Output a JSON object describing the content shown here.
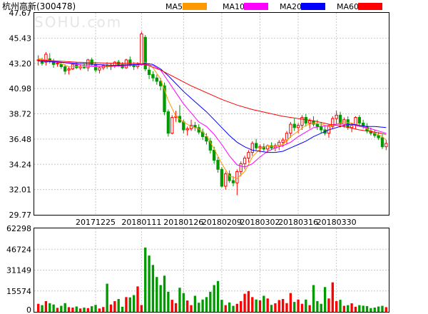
{
  "chart_data": {
    "type": "candlestick",
    "title": "杭州高新(300478)",
    "watermark": "SOHU.com",
    "legend": [
      {
        "name": "MA5",
        "color": "#ff9900"
      },
      {
        "name": "MA10",
        "color": "#ff00ff"
      },
      {
        "name": "MA20",
        "color": "#0000ff"
      },
      {
        "name": "MA60",
        "color": "#ff0000"
      }
    ],
    "colors": {
      "up": "#ff0000",
      "down": "#009900",
      "grid": "#c8c8c8"
    },
    "price_axis": {
      "ticks": [
        "47.67",
        "45.43",
        "43.20",
        "40.98",
        "38.72",
        "36.48",
        "34.24",
        "32.01",
        "29.77"
      ],
      "ylim": [
        29.77,
        47.67
      ]
    },
    "volume_axis": {
      "ticks": [
        "62298",
        "46724",
        "31149",
        "15574",
        "0"
      ],
      "ylim": [
        0,
        62298
      ]
    },
    "date_labels": [
      {
        "label": "20171225",
        "index": 15
      },
      {
        "label": "20180111",
        "index": 27
      },
      {
        "label": "20180126",
        "index": 38
      },
      {
        "label": "20180209",
        "index": 48
      },
      {
        "label": "20180302",
        "index": 58
      },
      {
        "label": "20180316",
        "index": 68
      },
      {
        "label": "20180330",
        "index": 78
      }
    ],
    "candles": [
      [
        43.5,
        43.9,
        43.0,
        43.5,
        6000
      ],
      [
        43.4,
        43.7,
        43.0,
        43.2,
        5000
      ],
      [
        43.3,
        44.2,
        43.0,
        44.0,
        8000
      ],
      [
        43.6,
        44.1,
        43.2,
        43.4,
        6500
      ],
      [
        43.4,
        43.6,
        42.8,
        43.1,
        5500
      ],
      [
        43.2,
        43.4,
        42.9,
        43.2,
        3000
      ],
      [
        43.1,
        43.3,
        42.7,
        42.9,
        4500
      ],
      [
        42.9,
        43.1,
        42.2,
        42.5,
        6500
      ],
      [
        42.6,
        42.9,
        42.2,
        42.7,
        3500
      ],
      [
        42.7,
        43.2,
        42.6,
        43.1,
        3200
      ],
      [
        43.1,
        43.3,
        42.7,
        42.8,
        4000
      ],
      [
        42.8,
        43.1,
        42.6,
        42.9,
        2500
      ],
      [
        42.9,
        43.2,
        42.7,
        42.8,
        3200
      ],
      [
        42.8,
        43.6,
        42.5,
        43.5,
        2800
      ],
      [
        43.5,
        43.7,
        43.0,
        43.1,
        4200
      ],
      [
        43.1,
        43.3,
        42.4,
        42.6,
        5200
      ],
      [
        42.6,
        42.9,
        42.3,
        42.8,
        2500
      ],
      [
        42.8,
        43.1,
        42.6,
        43.0,
        3600
      ],
      [
        43.0,
        43.3,
        42.7,
        42.9,
        21000
      ],
      [
        42.9,
        43.2,
        42.6,
        43.0,
        5500
      ],
      [
        43.0,
        43.4,
        42.8,
        43.3,
        8000
      ],
      [
        43.3,
        43.5,
        42.9,
        43.1,
        9600
      ],
      [
        43.1,
        43.3,
        42.7,
        42.8,
        3800
      ],
      [
        42.8,
        43.6,
        42.7,
        43.5,
        11000
      ],
      [
        43.5,
        43.8,
        42.9,
        43.0,
        10800
      ],
      [
        43.0,
        43.3,
        42.6,
        42.9,
        12500
      ],
      [
        42.9,
        43.3,
        42.7,
        43.1,
        19000
      ],
      [
        43.1,
        46.0,
        43.0,
        45.8,
        5100
      ],
      [
        45.5,
        45.7,
        42.5,
        42.7,
        48000
      ],
      [
        42.6,
        42.9,
        41.8,
        42.2,
        42000
      ],
      [
        42.2,
        42.5,
        41.6,
        41.9,
        35000
      ],
      [
        41.9,
        42.2,
        41.3,
        41.6,
        26000
      ],
      [
        41.6,
        41.9,
        40.8,
        41.2,
        20000
      ],
      [
        41.2,
        41.5,
        38.6,
        38.9,
        27000
      ],
      [
        38.9,
        39.1,
        36.7,
        37.0,
        15000
      ],
      [
        37.0,
        38.6,
        36.9,
        38.4,
        9000
      ],
      [
        38.4,
        39.0,
        38.0,
        38.5,
        6500
      ],
      [
        38.5,
        39.5,
        37.9,
        38.0,
        18000
      ],
      [
        38.0,
        38.2,
        37.0,
        37.3,
        14000
      ],
      [
        37.3,
        37.6,
        36.8,
        37.4,
        8500
      ],
      [
        37.4,
        38.2,
        37.2,
        37.7,
        5000
      ],
      [
        37.7,
        38.0,
        37.2,
        37.5,
        12000
      ],
      [
        37.5,
        37.8,
        36.9,
        37.1,
        6800
      ],
      [
        37.1,
        37.4,
        36.4,
        36.7,
        9200
      ],
      [
        36.7,
        37.0,
        36.0,
        36.3,
        11000
      ],
      [
        36.3,
        36.6,
        35.2,
        35.5,
        15000
      ],
      [
        35.5,
        35.8,
        34.3,
        34.6,
        20000
      ],
      [
        34.6,
        34.9,
        33.5,
        33.8,
        23000
      ],
      [
        33.8,
        34.0,
        32.2,
        32.3,
        9000
      ],
      [
        32.3,
        33.6,
        32.0,
        33.4,
        5000
      ],
      [
        33.4,
        33.7,
        32.6,
        32.8,
        7000
      ],
      [
        32.8,
        33.2,
        32.3,
        32.6,
        4500
      ],
      [
        32.6,
        33.8,
        31.5,
        33.6,
        6000
      ],
      [
        33.6,
        34.5,
        33.2,
        34.3,
        8000
      ],
      [
        34.3,
        35.0,
        33.8,
        34.8,
        13500
      ],
      [
        34.8,
        35.5,
        34.4,
        35.3,
        15500
      ],
      [
        35.3,
        36.3,
        35.0,
        36.1,
        11000
      ],
      [
        36.1,
        36.5,
        35.5,
        35.7,
        9200
      ],
      [
        35.7,
        36.0,
        35.3,
        35.8,
        8600
      ],
      [
        35.8,
        36.1,
        35.4,
        35.6,
        12000
      ],
      [
        35.6,
        36.0,
        35.3,
        35.9,
        10000
      ],
      [
        35.9,
        36.2,
        35.5,
        35.7,
        5200
      ],
      [
        35.7,
        36.1,
        35.4,
        35.9,
        6400
      ],
      [
        35.9,
        36.4,
        35.5,
        36.2,
        8800
      ],
      [
        36.2,
        36.6,
        35.8,
        36.4,
        9600
      ],
      [
        36.4,
        37.2,
        36.0,
        37.0,
        6500
      ],
      [
        37.0,
        38.0,
        36.6,
        37.8,
        14000
      ],
      [
        37.8,
        38.3,
        37.2,
        37.5,
        7400
      ],
      [
        37.5,
        37.9,
        37.0,
        37.7,
        9200
      ],
      [
        37.7,
        38.6,
        37.3,
        38.4,
        6000
      ],
      [
        38.4,
        38.7,
        37.6,
        37.9,
        9200
      ],
      [
        37.9,
        38.3,
        37.4,
        38.1,
        5000
      ],
      [
        38.1,
        38.5,
        37.6,
        37.8,
        20000
      ],
      [
        37.8,
        38.2,
        37.3,
        37.6,
        8000
      ],
      [
        37.6,
        38.0,
        37.0,
        37.3,
        6000
      ],
      [
        37.3,
        37.6,
        36.8,
        37.0,
        18500
      ],
      [
        37.0,
        37.8,
        36.6,
        37.6,
        10000
      ],
      [
        37.6,
        38.5,
        37.4,
        38.3,
        22000
      ],
      [
        38.3,
        39.0,
        37.8,
        38.6,
        8000
      ],
      [
        38.6,
        38.9,
        37.5,
        37.8,
        9000
      ],
      [
        37.8,
        38.4,
        37.5,
        38.2,
        4500
      ],
      [
        38.2,
        38.5,
        37.3,
        37.5,
        5000
      ],
      [
        37.5,
        37.9,
        37.1,
        37.7,
        6400
      ],
      [
        37.7,
        38.5,
        37.4,
        38.4,
        3800
      ],
      [
        38.4,
        38.6,
        37.6,
        37.9,
        5000
      ],
      [
        37.9,
        38.2,
        37.4,
        37.6,
        4600
      ],
      [
        37.6,
        37.9,
        37.0,
        37.2,
        4300
      ],
      [
        37.2,
        37.5,
        36.8,
        37.0,
        2800
      ],
      [
        37.0,
        37.3,
        36.6,
        36.8,
        3200
      ],
      [
        36.8,
        37.1,
        36.4,
        36.6,
        4000
      ],
      [
        36.6,
        36.9,
        35.6,
        35.8,
        4500
      ],
      [
        35.8,
        36.4,
        35.5,
        36.1,
        3500
      ]
    ],
    "ma5": [
      [
        0,
        43.6
      ],
      [
        4,
        43.4
      ],
      [
        8,
        42.9
      ],
      [
        12,
        42.9
      ],
      [
        16,
        42.9
      ],
      [
        20,
        43.0
      ],
      [
        24,
        43.1
      ],
      [
        26,
        43.0
      ],
      [
        28,
        43.3
      ],
      [
        30,
        42.8
      ],
      [
        32,
        41.8
      ],
      [
        34,
        39.9
      ],
      [
        36,
        38.5
      ],
      [
        38,
        38.0
      ],
      [
        40,
        37.6
      ],
      [
        42,
        37.4
      ],
      [
        44,
        36.8
      ],
      [
        46,
        35.6
      ],
      [
        48,
        34.3
      ],
      [
        50,
        33.2
      ],
      [
        52,
        33.0
      ],
      [
        54,
        33.6
      ],
      [
        56,
        34.9
      ],
      [
        58,
        35.6
      ],
      [
        60,
        35.9
      ],
      [
        62,
        35.8
      ],
      [
        64,
        36.0
      ],
      [
        66,
        36.7
      ],
      [
        68,
        37.2
      ],
      [
        70,
        37.7
      ],
      [
        72,
        37.9
      ],
      [
        74,
        37.8
      ],
      [
        76,
        37.6
      ],
      [
        78,
        37.8
      ],
      [
        80,
        38.0
      ],
      [
        82,
        37.9
      ],
      [
        84,
        37.7
      ],
      [
        86,
        37.4
      ],
      [
        88,
        37.0
      ],
      [
        90,
        36.7
      ],
      [
        91,
        36.4
      ]
    ],
    "ma10": [
      [
        0,
        43.5
      ],
      [
        6,
        43.3
      ],
      [
        12,
        43.0
      ],
      [
        18,
        42.9
      ],
      [
        24,
        43.0
      ],
      [
        28,
        43.1
      ],
      [
        30,
        43.0
      ],
      [
        32,
        42.6
      ],
      [
        34,
        41.6
      ],
      [
        36,
        40.6
      ],
      [
        38,
        39.6
      ],
      [
        40,
        38.8
      ],
      [
        42,
        38.0
      ],
      [
        44,
        37.6
      ],
      [
        46,
        36.9
      ],
      [
        48,
        36.0
      ],
      [
        50,
        35.0
      ],
      [
        52,
        34.2
      ],
      [
        54,
        34.0
      ],
      [
        56,
        34.3
      ],
      [
        58,
        34.9
      ],
      [
        60,
        35.4
      ],
      [
        62,
        35.7
      ],
      [
        64,
        35.9
      ],
      [
        66,
        36.2
      ],
      [
        68,
        36.7
      ],
      [
        70,
        37.1
      ],
      [
        72,
        37.5
      ],
      [
        74,
        37.6
      ],
      [
        76,
        37.7
      ],
      [
        78,
        37.8
      ],
      [
        80,
        37.8
      ],
      [
        82,
        37.8
      ],
      [
        84,
        37.6
      ],
      [
        86,
        37.5
      ],
      [
        88,
        37.3
      ],
      [
        91,
        37.0
      ]
    ],
    "ma20": [
      [
        0,
        43.4
      ],
      [
        10,
        43.2
      ],
      [
        20,
        43.0
      ],
      [
        26,
        43.1
      ],
      [
        28,
        43.2
      ],
      [
        30,
        43.1
      ],
      [
        32,
        42.7
      ],
      [
        34,
        42.1
      ],
      [
        36,
        41.4
      ],
      [
        38,
        40.7
      ],
      [
        40,
        40.1
      ],
      [
        42,
        39.5
      ],
      [
        44,
        38.9
      ],
      [
        46,
        38.2
      ],
      [
        48,
        37.5
      ],
      [
        50,
        36.8
      ],
      [
        52,
        36.2
      ],
      [
        54,
        35.8
      ],
      [
        56,
        35.5
      ],
      [
        58,
        35.4
      ],
      [
        60,
        35.3
      ],
      [
        62,
        35.3
      ],
      [
        64,
        35.4
      ],
      [
        66,
        35.7
      ],
      [
        68,
        36.0
      ],
      [
        70,
        36.3
      ],
      [
        72,
        36.7
      ],
      [
        74,
        37.0
      ],
      [
        76,
        37.3
      ],
      [
        78,
        37.5
      ],
      [
        80,
        37.7
      ],
      [
        82,
        37.8
      ],
      [
        84,
        37.7
      ],
      [
        86,
        37.6
      ],
      [
        88,
        37.6
      ],
      [
        91,
        37.5
      ]
    ],
    "ma60": [
      [
        0,
        43.5
      ],
      [
        10,
        43.3
      ],
      [
        20,
        43.2
      ],
      [
        26,
        43.2
      ],
      [
        28,
        43.1
      ],
      [
        32,
        42.6
      ],
      [
        36,
        41.9
      ],
      [
        40,
        41.2
      ],
      [
        44,
        40.6
      ],
      [
        48,
        40.0
      ],
      [
        52,
        39.5
      ],
      [
        56,
        39.1
      ],
      [
        60,
        38.8
      ],
      [
        64,
        38.5
      ],
      [
        68,
        38.3
      ],
      [
        72,
        38.1
      ],
      [
        76,
        37.8
      ],
      [
        80,
        37.6
      ],
      [
        84,
        37.3
      ],
      [
        88,
        37.1
      ],
      [
        91,
        36.9
      ]
    ]
  }
}
